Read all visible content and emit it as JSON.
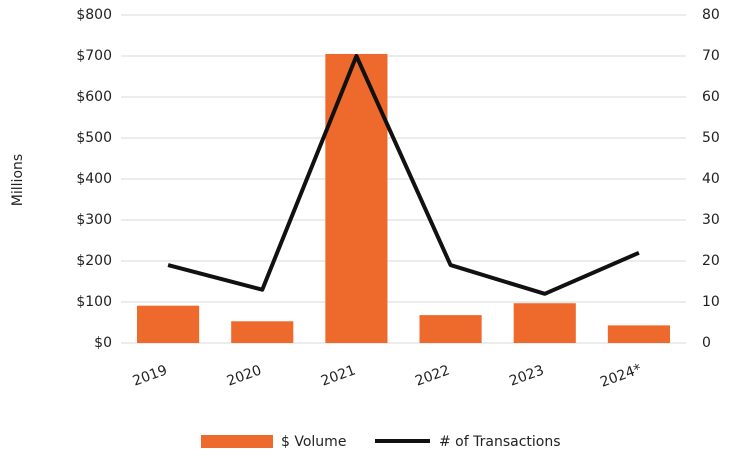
{
  "chart_data": {
    "type": "bar_line",
    "y_axis_label": "Millions",
    "categories": [
      "2019",
      "2020",
      "2021",
      "2022",
      "2023",
      "2024*"
    ],
    "series": [
      {
        "name": "$ Volume",
        "color": "#ee6a2c",
        "type": "bar",
        "values": [
          91,
          53,
          705,
          68,
          97,
          43
        ]
      },
      {
        "name": "# of Transactions",
        "color": "#111111",
        "type": "line",
        "axis": "y2",
        "values": [
          19,
          13,
          70,
          19,
          12,
          22
        ]
      }
    ],
    "ylim": [
      0,
      800
    ],
    "yticks": [
      {
        "value": 0,
        "label": "$0"
      },
      {
        "value": 100,
        "label": "$100"
      },
      {
        "value": 200,
        "label": "$200"
      },
      {
        "value": 300,
        "label": "$300"
      },
      {
        "value": 400,
        "label": "$400"
      },
      {
        "value": 500,
        "label": "$500"
      },
      {
        "value": 600,
        "label": "$600"
      },
      {
        "value": 700,
        "label": "$700"
      },
      {
        "value": 800,
        "label": "$800"
      }
    ],
    "y2lim": [
      0,
      80
    ],
    "y2ticks": [
      0,
      10,
      20,
      30,
      40,
      50,
      60,
      70,
      80
    ],
    "grid": true
  }
}
